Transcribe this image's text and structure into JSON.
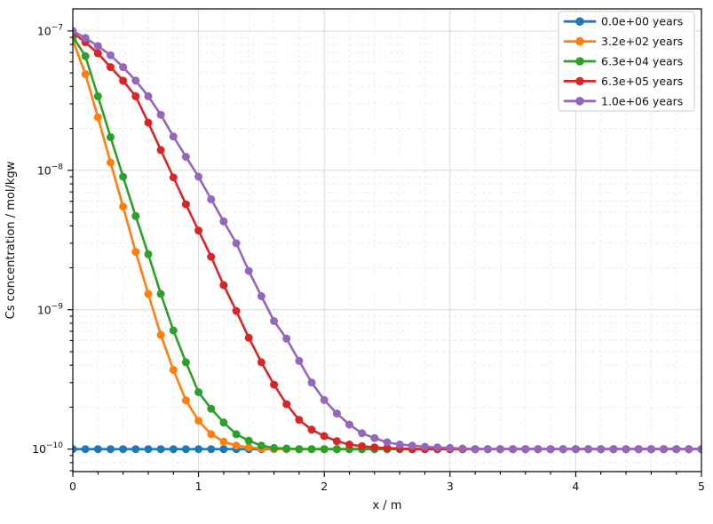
{
  "chart_data": {
    "type": "line",
    "title": "",
    "xlabel": "x / m",
    "ylabel": "Cs concentration / mol/kgw",
    "x_scale": "linear",
    "y_scale": "log",
    "xlim": [
      0,
      5
    ],
    "ylim": [
      6.9e-11,
      1.44e-07
    ],
    "x_major_ticks": [
      0,
      1,
      2,
      3,
      4,
      5
    ],
    "x_minor_step": 0.2,
    "y_major_tick_exponents": [
      -7,
      -8,
      -9,
      -10
    ],
    "grid": {
      "major": true,
      "minor": true
    },
    "legend_position": "upper right",
    "marker": "circle",
    "x_step": 0.1,
    "style": {
      "background": "#ffffff",
      "spine_color": "#000000",
      "major_grid_color": "#d9d9d9",
      "minor_grid_color": "#e6e6e6",
      "legend_edge_color": "#cccccc",
      "text_color": "#111111"
    },
    "x": [
      0,
      0.1,
      0.2,
      0.3,
      0.4,
      0.5,
      0.6,
      0.7,
      0.8,
      0.9,
      1,
      1.1,
      1.2,
      1.3,
      1.4,
      1.5,
      1.6,
      1.7,
      1.8,
      1.9,
      2,
      2.1,
      2.2,
      2.3,
      2.4,
      2.5,
      2.6,
      2.7,
      2.8,
      2.9,
      3,
      3.1,
      3.2,
      3.3,
      3.4,
      3.5,
      3.6,
      3.7,
      3.8,
      3.9,
      4,
      4.1,
      4.2,
      4.3,
      4.4,
      4.5,
      4.6,
      4.7,
      4.8,
      4.9,
      5
    ],
    "series": [
      {
        "name": "0.0e+00 years",
        "color": "#1f77b4",
        "values": [
          1e-10,
          1e-10,
          1e-10,
          1e-10,
          1e-10,
          1e-10,
          1e-10,
          1e-10,
          1e-10,
          1e-10,
          1e-10,
          1e-10,
          1e-10,
          1e-10,
          1e-10,
          1e-10,
          1e-10,
          1e-10,
          1e-10,
          1e-10,
          1e-10,
          1e-10,
          1e-10,
          1e-10,
          1e-10,
          1e-10,
          1e-10,
          1e-10,
          1e-10,
          1e-10,
          1e-10,
          1e-10,
          1e-10,
          1e-10,
          1e-10,
          1e-10,
          1e-10,
          1e-10,
          1e-10,
          1e-10,
          1e-10,
          1e-10,
          1e-10,
          1e-10,
          1e-10,
          1e-10,
          1e-10,
          1e-10,
          1e-10,
          1e-10,
          1e-10
        ]
      },
      {
        "name": "3.2e+02 years",
        "color": "#ff7f0e",
        "values": [
          8.6e-08,
          4.9e-08,
          2.4e-08,
          1.14e-08,
          5.5e-09,
          2.6e-09,
          1.3e-09,
          6.6e-10,
          3.7e-10,
          2.24e-10,
          1.6e-10,
          1.28e-10,
          1.13e-10,
          1.06e-10,
          1.03e-10,
          1.01e-10,
          1e-10,
          1e-10,
          1e-10,
          1e-10,
          1e-10,
          1e-10,
          1e-10,
          1e-10,
          1e-10,
          1e-10,
          1e-10,
          1e-10,
          1e-10,
          1e-10,
          1e-10,
          1e-10,
          1e-10,
          1e-10,
          1e-10,
          1e-10,
          1e-10,
          1e-10,
          1e-10,
          1e-10,
          1e-10,
          1e-10,
          1e-10,
          1e-10,
          1e-10,
          1e-10,
          1e-10,
          1e-10,
          1e-10,
          1e-10,
          1e-10
        ]
      },
      {
        "name": "6.3e+04 years",
        "color": "#2ca02c",
        "values": [
          9.1e-08,
          6.6e-08,
          3.4e-08,
          1.73e-08,
          9e-09,
          4.7e-09,
          2.5e-09,
          1.3e-09,
          7.1e-10,
          4.2e-10,
          2.56e-10,
          1.95e-10,
          1.55e-10,
          1.28e-10,
          1.15e-10,
          1.06e-10,
          1.02e-10,
          1.01e-10,
          1e-10,
          1e-10,
          1e-10,
          1e-10,
          1e-10,
          1e-10,
          1e-10,
          1e-10,
          1e-10,
          1e-10,
          1e-10,
          1e-10,
          1e-10,
          1e-10,
          1e-10,
          1e-10,
          1e-10,
          1e-10,
          1e-10,
          1e-10,
          1e-10,
          1e-10,
          1e-10,
          1e-10,
          1e-10,
          1e-10,
          1e-10,
          1e-10,
          1e-10,
          1e-10,
          1e-10,
          1e-10,
          1e-10
        ]
      },
      {
        "name": "6.3e+05 years",
        "color": "#d62728",
        "values": [
          9.7e-08,
          8.3e-08,
          6.9e-08,
          5.5e-08,
          4.4e-08,
          3.4e-08,
          2.2e-08,
          1.4e-08,
          8.9e-09,
          5.7e-09,
          3.7e-09,
          2.4e-09,
          1.5e-09,
          9.8e-10,
          6.3e-10,
          4.2e-10,
          2.9e-10,
          2.1e-10,
          1.62e-10,
          1.38e-10,
          1.24e-10,
          1.14e-10,
          1.08e-10,
          1.05e-10,
          1.03e-10,
          1.02e-10,
          1.01e-10,
          1e-10,
          1e-10,
          1e-10,
          1e-10,
          1e-10,
          1e-10,
          1e-10,
          1e-10,
          1e-10,
          1e-10,
          1e-10,
          1e-10,
          1e-10,
          1e-10,
          1e-10,
          1e-10,
          1e-10,
          1e-10,
          1e-10,
          1e-10,
          1e-10,
          1e-10,
          1e-10,
          1e-10
        ]
      },
      {
        "name": "1.0e+06 years",
        "color": "#9467bd",
        "values": [
          1e-07,
          8.9e-08,
          7.8e-08,
          6.7e-08,
          5.5e-08,
          4.4e-08,
          3.4e-08,
          2.5e-08,
          1.75e-08,
          1.25e-08,
          9e-09,
          6.2e-09,
          4.3e-09,
          3e-09,
          1.9e-09,
          1.25e-09,
          8.3e-10,
          6.2e-10,
          4.3e-10,
          3e-10,
          2.25e-10,
          1.8e-10,
          1.5e-10,
          1.3e-10,
          1.2e-10,
          1.12e-10,
          1.08e-10,
          1.06e-10,
          1.04e-10,
          1.03e-10,
          1.02e-10,
          1.01e-10,
          1e-10,
          1e-10,
          1e-10,
          1e-10,
          1e-10,
          1e-10,
          1e-10,
          1e-10,
          1e-10,
          1e-10,
          1e-10,
          1e-10,
          1e-10,
          1e-10,
          1e-10,
          1e-10,
          1e-10,
          1e-10,
          1e-10
        ]
      }
    ]
  }
}
